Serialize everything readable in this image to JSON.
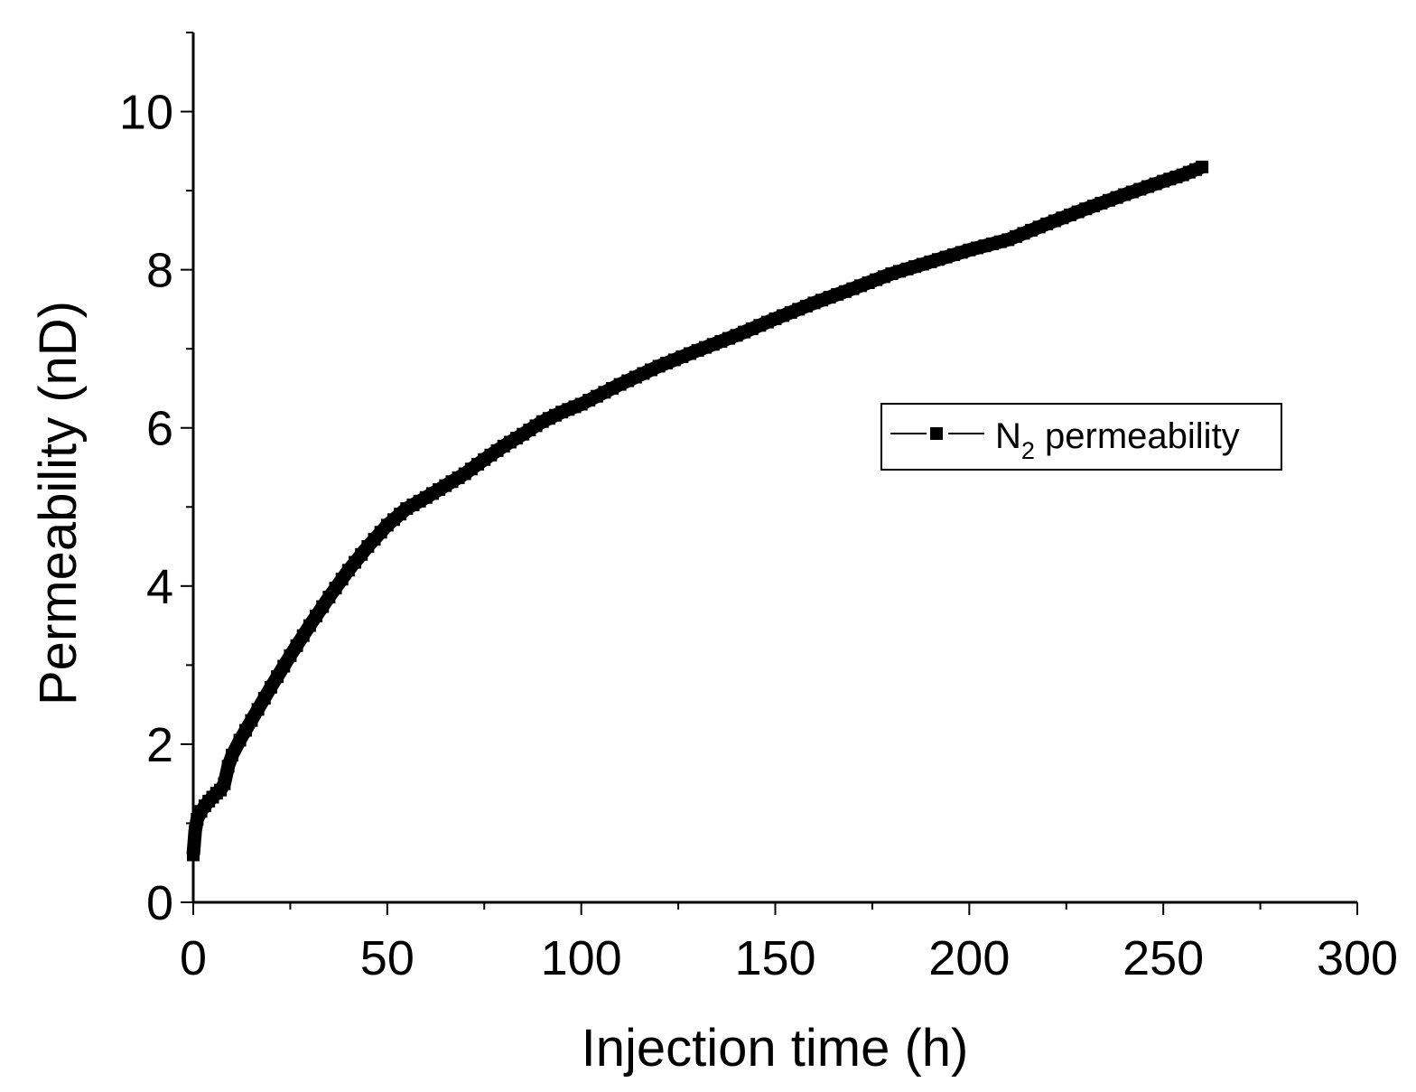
{
  "chart_data": {
    "type": "line",
    "title": "",
    "xlabel": "Injection time (h)",
    "ylabel": "Permeability (nD)",
    "xlim": [
      0,
      300
    ],
    "ylim": [
      0,
      11
    ],
    "x_ticks": [
      0,
      50,
      100,
      150,
      200,
      250,
      300
    ],
    "y_ticks": [
      0,
      2,
      4,
      6,
      8,
      10
    ],
    "x_tick_labels": [
      "0",
      "50",
      "100",
      "150",
      "200",
      "250",
      "300"
    ],
    "y_tick_labels": [
      "0",
      "2",
      "4",
      "6",
      "8",
      "10"
    ],
    "x_minor_step": 25,
    "y_minor_step": 1,
    "grid": false,
    "legend": {
      "placement": "right-middle",
      "entries": [
        {
          "label_main": "N",
          "label_sub": "2",
          "label_rest": " permeability"
        }
      ]
    },
    "series": [
      {
        "name": "N2 permeability",
        "color": "#000000",
        "marker": "square",
        "points": [
          [
            0,
            0.6
          ],
          [
            0.5,
            0.9
          ],
          [
            1,
            1.05
          ],
          [
            2,
            1.15
          ],
          [
            3,
            1.22
          ],
          [
            4,
            1.28
          ],
          [
            5,
            1.33
          ],
          [
            6,
            1.38
          ],
          [
            7,
            1.42
          ],
          [
            8,
            1.5
          ],
          [
            9,
            1.72
          ],
          [
            10,
            1.86
          ],
          [
            12,
            2.05
          ],
          [
            15,
            2.3
          ],
          [
            20,
            2.72
          ],
          [
            25,
            3.12
          ],
          [
            30,
            3.5
          ],
          [
            35,
            3.86
          ],
          [
            40,
            4.2
          ],
          [
            45,
            4.5
          ],
          [
            50,
            4.77
          ],
          [
            55,
            4.98
          ],
          [
            60,
            5.12
          ],
          [
            65,
            5.27
          ],
          [
            70,
            5.42
          ],
          [
            75,
            5.6
          ],
          [
            80,
            5.77
          ],
          [
            85,
            5.92
          ],
          [
            90,
            6.08
          ],
          [
            95,
            6.2
          ],
          [
            100,
            6.3
          ],
          [
            110,
            6.55
          ],
          [
            120,
            6.78
          ],
          [
            130,
            6.98
          ],
          [
            140,
            7.17
          ],
          [
            150,
            7.38
          ],
          [
            160,
            7.58
          ],
          [
            170,
            7.76
          ],
          [
            180,
            7.95
          ],
          [
            190,
            8.1
          ],
          [
            200,
            8.25
          ],
          [
            210,
            8.38
          ],
          [
            220,
            8.58
          ],
          [
            230,
            8.77
          ],
          [
            240,
            8.95
          ],
          [
            250,
            9.12
          ],
          [
            255,
            9.2
          ],
          [
            260,
            9.3
          ]
        ]
      }
    ]
  }
}
